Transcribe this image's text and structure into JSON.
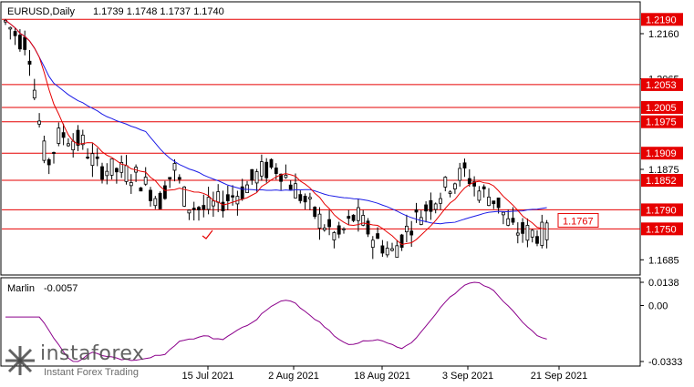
{
  "header": {
    "symbol": "EURUSD,Daily",
    "ohlc": "1.1739 1.1748 1.1737 1.1740"
  },
  "indicator": {
    "name": "Marlin",
    "value": "-0.0057",
    "ticks": [
      "0.0138",
      "0.00",
      "-0.0333"
    ]
  },
  "logo": {
    "word": "instaforex",
    "tagline": "Instant Forex Trading"
  },
  "colors": {
    "candle_body_bear": "#000000",
    "candle_body_bull": "#ffffff",
    "level_line": "#e60000",
    "ma_fast": "#e60000",
    "ma_slow": "#1a1ae6",
    "oscillator": "#8b008b",
    "label_box": "#e60000"
  },
  "chart_data": {
    "type": "candlestick",
    "price_axis_ticks": [
      "1.2160",
      "1.2065",
      "1.1875",
      "1.1685"
    ],
    "level_labels": [
      "1.2190",
      "1.2053",
      "1.2005",
      "1.1975",
      "1.1909",
      "1.1852",
      "1.1790",
      "1.1750"
    ],
    "levels": [
      1.219,
      1.2053,
      1.2005,
      1.1975,
      1.1909,
      1.1852,
      1.179,
      1.175
    ],
    "ma_label": "1.1767",
    "x_labels": [
      "15 Jul 2021",
      "2 Aug 2021",
      "18 Aug 2021",
      "3 Sep 2021",
      "21 Sep 2021"
    ],
    "price_range": [
      1.1655,
      1.2225
    ],
    "osc_range": [
      -0.0333,
      0.0138
    ]
  }
}
